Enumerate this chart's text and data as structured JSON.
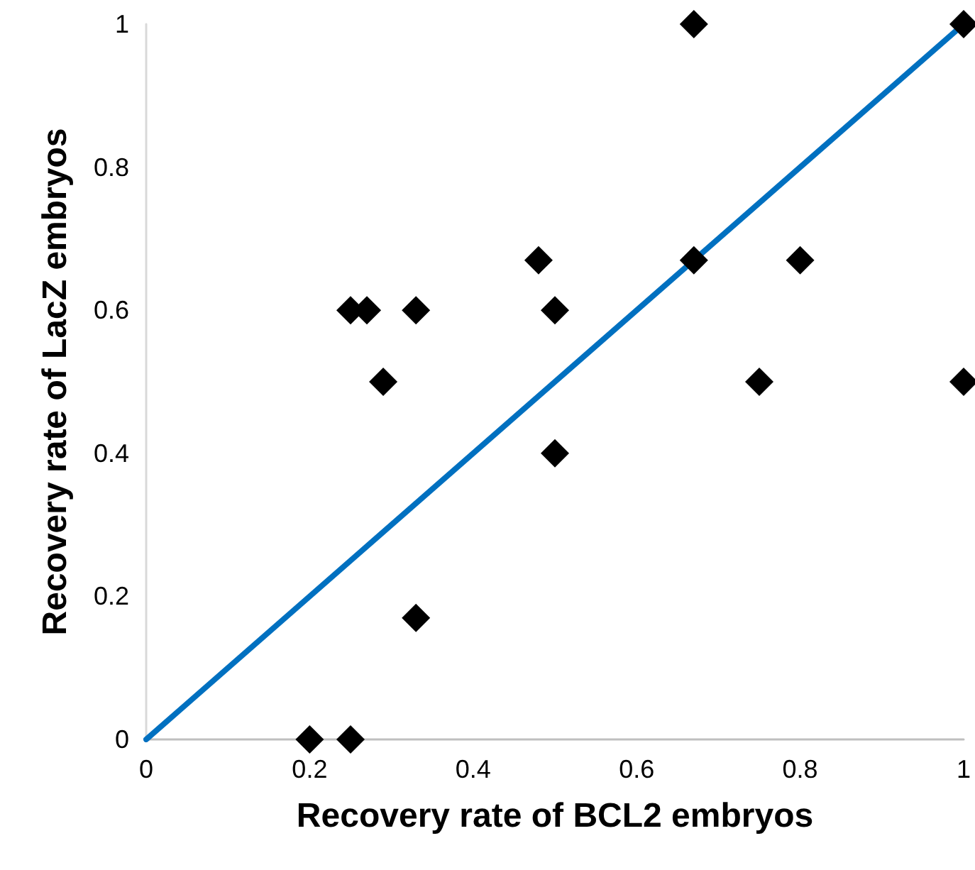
{
  "chart_data": {
    "type": "scatter",
    "xlabel": "Recovery rate of BCL2 embryos",
    "ylabel": "Recovery rate of LacZ embryos",
    "xlim": [
      0,
      1
    ],
    "ylim": [
      0,
      1
    ],
    "xticks": [
      0,
      0.2,
      0.4,
      0.6,
      0.8,
      1
    ],
    "yticks": [
      0,
      0.2,
      0.4,
      0.6,
      0.8,
      1
    ],
    "grid": false,
    "marker": "diamond",
    "series": [
      {
        "type": "scatter",
        "color": "#000000",
        "x": [
          0.2,
          0.25,
          0.33,
          0.5,
          0.25,
          0.27,
          0.33,
          0.5,
          0.29,
          0.48,
          0.67,
          0.8,
          0.67,
          1,
          0.75,
          1
        ],
        "values": [
          0,
          0,
          0.17,
          0.4,
          0.6,
          0.6,
          0.6,
          0.6,
          0.5,
          0.67,
          0.67,
          0.67,
          1,
          1,
          0.5,
          0.5
        ]
      },
      {
        "type": "line",
        "color": "#0070c0",
        "marker": "none",
        "x": [
          0,
          1
        ],
        "values": [
          0,
          1
        ]
      }
    ]
  }
}
